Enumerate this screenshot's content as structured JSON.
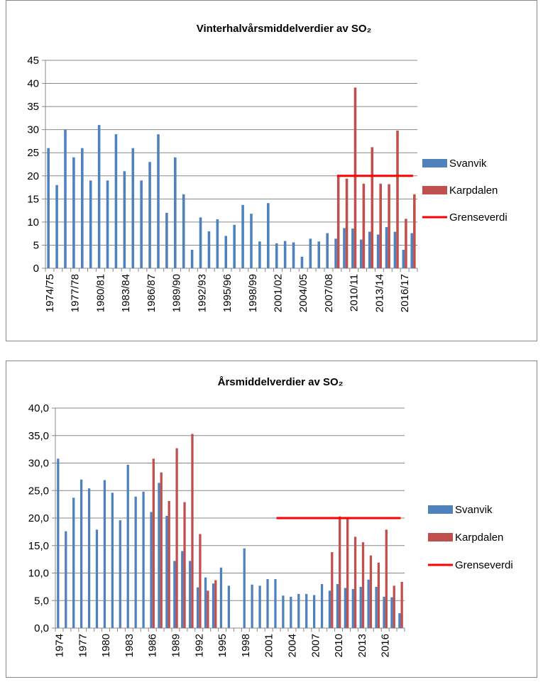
{
  "chart_data": [
    {
      "type": "bar",
      "title": "Vinterhalvårsmiddelverdier av SO₂",
      "categories": [
        "1974/75",
        null,
        null,
        "1977/78",
        null,
        null,
        "1980/81",
        null,
        null,
        "1983/84",
        null,
        null,
        "1986/87",
        null,
        null,
        "1989/90",
        null,
        null,
        "1992/93",
        null,
        null,
        "1995/96",
        null,
        null,
        "1998/99",
        null,
        null,
        "2001/02",
        null,
        null,
        "2004/05",
        null,
        null,
        "2007/08",
        null,
        null,
        "2010/11",
        null,
        null,
        "2013/14",
        null,
        null,
        "2016/17",
        null
      ],
      "series": [
        {
          "name": "Svanvik",
          "color": "#4f81bd",
          "values": [
            26,
            18,
            30,
            24,
            26,
            19,
            31,
            19,
            29,
            21,
            26,
            19,
            23,
            29,
            12,
            24,
            16,
            4,
            11,
            8,
            10.6,
            7,
            9.4,
            13.7,
            11.8,
            5.8,
            14.1,
            5.4,
            5.9,
            5.6,
            2.5,
            6.4,
            5.8,
            7.6,
            6.4,
            8.7,
            8.6,
            6.2,
            7.9,
            7.3,
            8.9,
            7.9,
            4.0,
            7.6
          ]
        },
        {
          "name": "Karpdalen",
          "color": "#c0504d",
          "values": [
            null,
            null,
            null,
            null,
            null,
            null,
            null,
            null,
            null,
            null,
            null,
            null,
            null,
            null,
            null,
            null,
            null,
            null,
            null,
            null,
            null,
            null,
            null,
            null,
            null,
            null,
            null,
            null,
            null,
            null,
            null,
            null,
            null,
            null,
            20.2,
            19.4,
            39.1,
            18.3,
            26.2,
            18.3,
            18.2,
            29.8,
            10.7,
            16.0
          ]
        },
        {
          "name": "Grenseverdi",
          "color": "#ff0000",
          "type": "line",
          "values": [
            null,
            null,
            null,
            null,
            null,
            null,
            null,
            null,
            null,
            null,
            null,
            null,
            null,
            null,
            null,
            null,
            null,
            null,
            null,
            null,
            null,
            null,
            null,
            null,
            null,
            null,
            null,
            null,
            null,
            null,
            null,
            null,
            null,
            null,
            20,
            20,
            20,
            20,
            20,
            20,
            20,
            20,
            20,
            20
          ]
        }
      ],
      "ylim": [
        0,
        45
      ],
      "yticks": [
        0,
        5,
        10,
        15,
        20,
        25,
        30,
        35,
        40,
        45
      ],
      "grid": true,
      "legend": "right"
    },
    {
      "type": "bar",
      "title": "Årsmiddelverdier av SO₂",
      "categories": [
        "1974",
        null,
        null,
        "1977",
        null,
        null,
        "1980",
        null,
        null,
        "1983",
        null,
        null,
        "1986",
        null,
        null,
        "1989",
        null,
        null,
        "1992",
        null,
        null,
        "1995",
        null,
        null,
        "1998",
        null,
        null,
        "2001",
        null,
        null,
        "2004",
        null,
        null,
        "2007",
        null,
        null,
        "2010",
        null,
        null,
        "2013",
        null,
        null,
        "2016",
        null,
        null
      ],
      "series": [
        {
          "name": "Svanvik",
          "color": "#4f81bd",
          "values": [
            30.8,
            17.6,
            23.7,
            27.0,
            25.4,
            17.9,
            26.9,
            24.6,
            19.6,
            29.7,
            23.9,
            24.8,
            21.1,
            26.4,
            20.4,
            12.2,
            14.0,
            12.2,
            7.4,
            9.2,
            8.1,
            11.0,
            7.7,
            null,
            14.5,
            7.9,
            7.7,
            8.9,
            8.9,
            5.9,
            5.7,
            6.2,
            6.2,
            6.0,
            8.0,
            6.8,
            8.0,
            7.3,
            7.1,
            7.5,
            8.8,
            7.5,
            5.7,
            5.6,
            2.7
          ]
        },
        {
          "name": "Karpdalen",
          "color": "#c0504d",
          "values": [
            null,
            null,
            null,
            null,
            null,
            null,
            null,
            null,
            null,
            null,
            null,
            null,
            30.8,
            28.3,
            23.1,
            32.7,
            22.9,
            35.3,
            17.1,
            6.8,
            8.7,
            null,
            null,
            null,
            null,
            null,
            null,
            null,
            null,
            null,
            null,
            null,
            null,
            null,
            null,
            13.8,
            20.3,
            20.0,
            16.6,
            15.6,
            13.2,
            11.9,
            17.9,
            7.7,
            8.4
          ]
        },
        {
          "name": "Grenseverdi",
          "color": "#ff0000",
          "type": "line",
          "values": [
            null,
            null,
            null,
            null,
            null,
            null,
            null,
            null,
            null,
            null,
            null,
            null,
            null,
            null,
            null,
            null,
            null,
            null,
            null,
            null,
            null,
            null,
            null,
            null,
            null,
            null,
            null,
            null,
            20,
            20,
            20,
            20,
            20,
            20,
            20,
            20,
            20,
            20,
            20,
            20,
            20,
            20,
            20,
            20,
            20
          ]
        }
      ],
      "ylim": [
        0,
        40
      ],
      "yticks": [
        {
          "value": 0,
          "label": "0,0"
        },
        {
          "value": 5,
          "label": "5,0"
        },
        {
          "value": 10,
          "label": "10,0"
        },
        {
          "value": 15,
          "label": "15,0"
        },
        {
          "value": 20,
          "label": "20,0"
        },
        {
          "value": 25,
          "label": "25,0"
        },
        {
          "value": 30,
          "label": "30,0"
        },
        {
          "value": 35,
          "label": "35,0"
        },
        {
          "value": 40,
          "label": "40,0"
        }
      ],
      "grid": true,
      "legend": "right"
    }
  ]
}
